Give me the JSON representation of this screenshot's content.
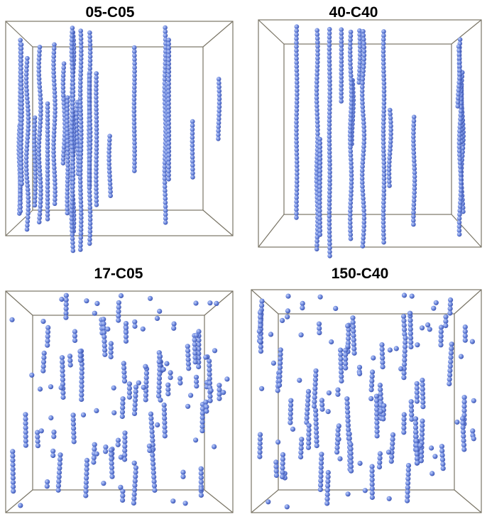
{
  "figure": {
    "panels": [
      {
        "title": "05-C05",
        "pattern": "chains-long",
        "chain_count": 24
      },
      {
        "title": "40-C40",
        "pattern": "chains-long",
        "chain_count": 16
      },
      {
        "title": "17-C05",
        "pattern": "chains-fragmented",
        "chain_count": 60
      },
      {
        "title": "150-C40",
        "pattern": "chains-fragmented",
        "chain_count": 60
      }
    ],
    "colors": {
      "particle": "#6f8be0",
      "particle_highlight": "#c6d2f7",
      "particle_shade": "#3f56b0",
      "box_edge": "#7a7566"
    }
  }
}
